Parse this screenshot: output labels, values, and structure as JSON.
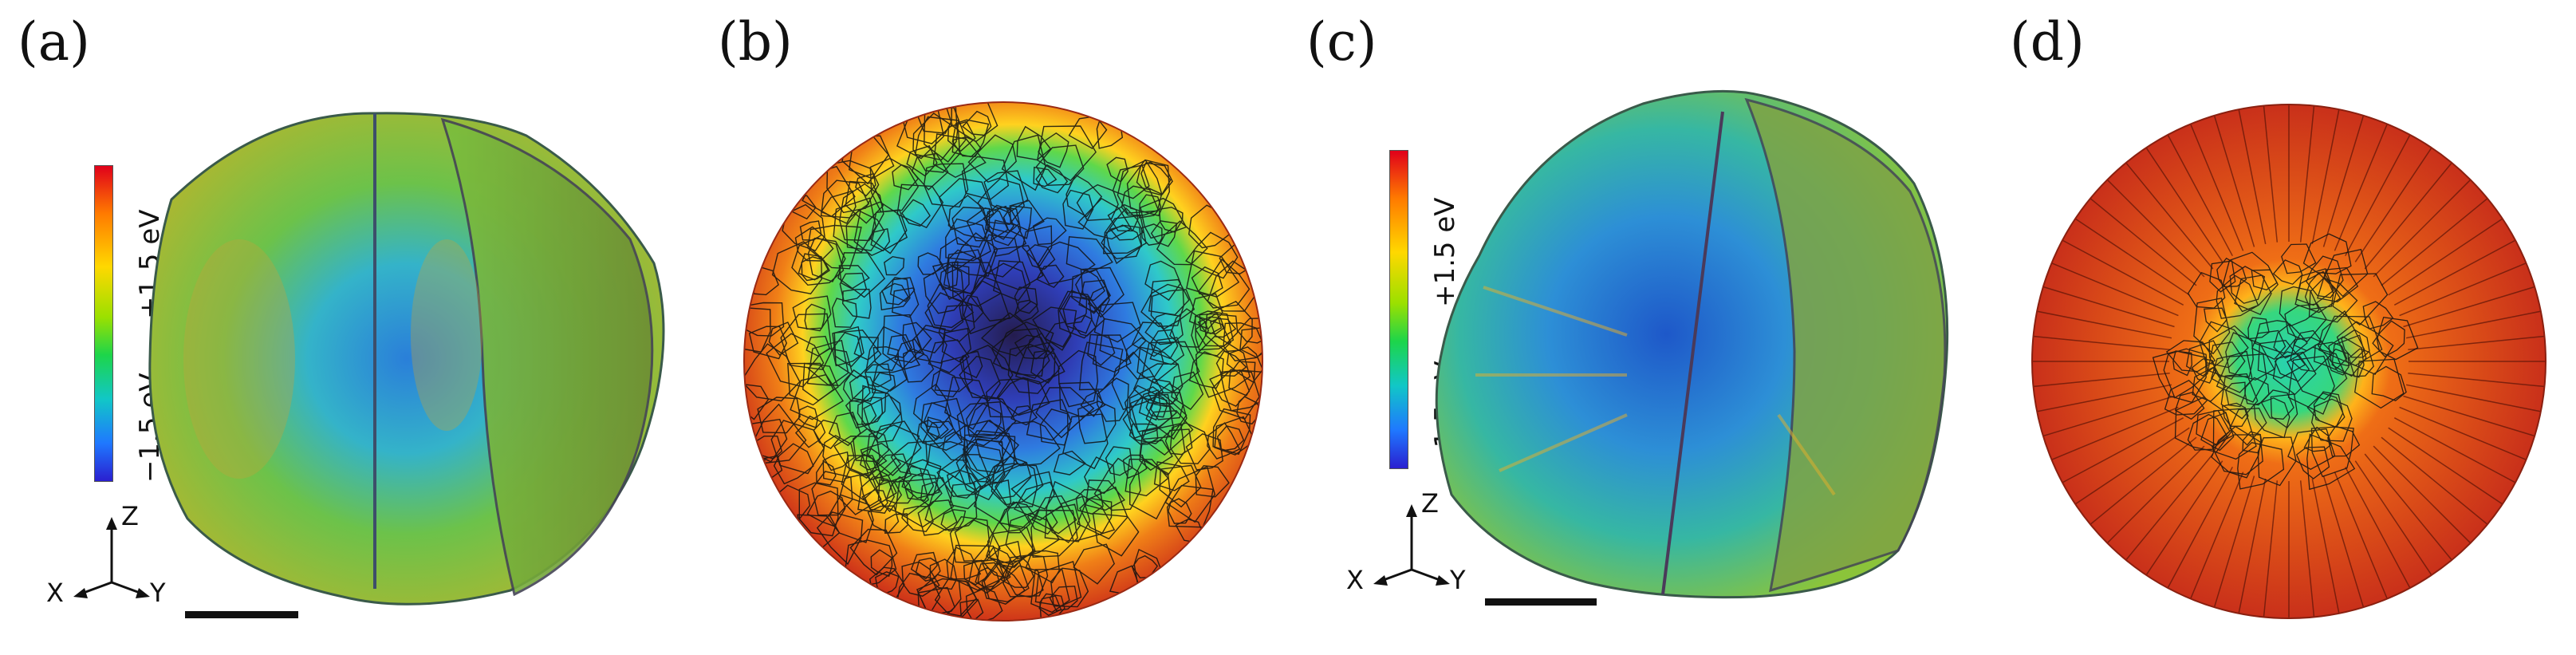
{
  "panels": {
    "a": {
      "label": "(a)"
    },
    "b": {
      "label": "(b)"
    },
    "c": {
      "label": "(c)"
    },
    "d": {
      "label": "(d)"
    }
  },
  "colorbar": {
    "top_label": "+1.5 eV",
    "bottom_label": "−1.5 eV"
  },
  "axes_triad": {
    "z": "Z",
    "x": "X",
    "y": "Y"
  },
  "colors": {
    "high": "#d8331a",
    "mid": "#ffd21f",
    "green": "#4fd24a",
    "cyan": "#2fc9c9",
    "low": "#2a32c8",
    "deep": "#26205a"
  }
}
